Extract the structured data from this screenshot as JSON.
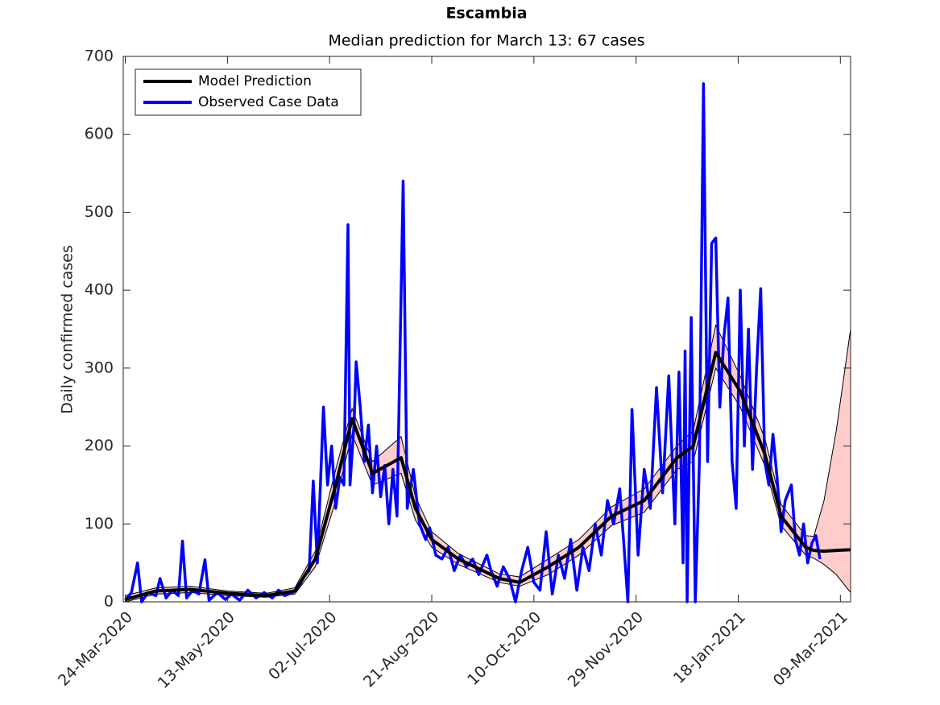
{
  "chart_data": {
    "type": "line",
    "title": "Escambia",
    "subtitle": "Median prediction for March 13: 67 cases",
    "y_label": "Daily confirmed cases",
    "xlim": [
      "2020-03-23",
      "2021-03-14"
    ],
    "xticks": [
      {
        "value": "2020-03-24",
        "label": "24-Mar-2020"
      },
      {
        "value": "2020-05-13",
        "label": "13-May-2020"
      },
      {
        "value": "2020-07-02",
        "label": "02-Jul-2020"
      },
      {
        "value": "2020-08-21",
        "label": "21-Aug-2020"
      },
      {
        "value": "2020-10-10",
        "label": "10-Oct-2020"
      },
      {
        "value": "2020-11-29",
        "label": "29-Nov-2020"
      },
      {
        "value": "2021-01-18",
        "label": "18-Jan-2021"
      },
      {
        "value": "2021-03-09",
        "label": "09-Mar-2021"
      }
    ],
    "ylim": [
      0,
      700
    ],
    "yticks": [
      0,
      100,
      200,
      300,
      400,
      500,
      600,
      700
    ],
    "legend": "upper left",
    "band": {
      "color": "#ffcccc",
      "x": [
        "2020-03-24",
        "2020-04-08",
        "2020-04-25",
        "2020-05-13",
        "2020-06-01",
        "2020-06-15",
        "2020-06-25",
        "2020-07-05",
        "2020-07-13",
        "2020-07-23",
        "2020-08-06",
        "2020-08-13",
        "2020-08-21",
        "2020-09-03",
        "2020-09-23",
        "2020-10-03",
        "2020-10-17",
        "2020-11-01",
        "2020-11-17",
        "2020-12-03",
        "2020-12-19",
        "2020-12-27",
        "2021-01-07",
        "2021-01-19",
        "2021-01-31",
        "2021-02-08",
        "2021-02-20",
        "2021-02-24",
        "2021-03-01",
        "2021-03-07",
        "2021-03-14"
      ],
      "lower": [
        0,
        10,
        12,
        8,
        6,
        10,
        45,
        130,
        215,
        150,
        165,
        105,
        70,
        48,
        25,
        20,
        35,
        60,
        98,
        115,
        170,
        180,
        300,
        250,
        175,
        98,
        60,
        56,
        48,
        35,
        12
      ],
      "upper": [
        8,
        18,
        20,
        14,
        11,
        18,
        65,
        170,
        248,
        180,
        212,
        135,
        90,
        62,
        36,
        32,
        55,
        80,
        122,
        145,
        200,
        220,
        355,
        290,
        210,
        125,
        85,
        84,
        130,
        220,
        350
      ]
    },
    "series": [
      {
        "name": "Model Prediction",
        "color": "#000000",
        "x": [
          "2020-03-24",
          "2020-04-08",
          "2020-04-25",
          "2020-05-13",
          "2020-06-01",
          "2020-06-15",
          "2020-06-25",
          "2020-07-05",
          "2020-07-13",
          "2020-07-23",
          "2020-08-06",
          "2020-08-13",
          "2020-08-21",
          "2020-09-03",
          "2020-09-23",
          "2020-10-03",
          "2020-10-17",
          "2020-11-01",
          "2020-11-17",
          "2020-12-03",
          "2020-12-19",
          "2020-12-27",
          "2021-01-07",
          "2021-01-19",
          "2021-01-31",
          "2021-02-08",
          "2021-02-20",
          "2021-02-24",
          "2021-03-01",
          "2021-03-07",
          "2021-03-14"
        ],
        "values": [
          3,
          14,
          16,
          11,
          8,
          14,
          55,
          150,
          235,
          165,
          185,
          120,
          80,
          55,
          30,
          25,
          45,
          70,
          110,
          130,
          185,
          200,
          320,
          270,
          190,
          110,
          70,
          66,
          65,
          66,
          67
        ]
      },
      {
        "name": "Observed Case Data",
        "color": "#0000ff",
        "x": [
          "2020-03-24",
          "2020-03-27",
          "2020-03-30",
          "2020-04-01",
          "2020-04-04",
          "2020-04-08",
          "2020-04-10",
          "2020-04-13",
          "2020-04-16",
          "2020-04-19",
          "2020-04-21",
          "2020-04-23",
          "2020-04-26",
          "2020-04-29",
          "2020-05-02",
          "2020-05-04",
          "2020-05-08",
          "2020-05-12",
          "2020-05-15",
          "2020-05-19",
          "2020-05-23",
          "2020-05-27",
          "2020-05-31",
          "2020-06-04",
          "2020-06-07",
          "2020-06-10",
          "2020-06-14",
          "2020-06-17",
          "2020-06-20",
          "2020-06-22",
          "2020-06-24",
          "2020-06-26",
          "2020-06-29",
          "2020-07-01",
          "2020-07-03",
          "2020-07-05",
          "2020-07-07",
          "2020-07-09",
          "2020-07-11",
          "2020-07-12",
          "2020-07-14",
          "2020-07-15",
          "2020-07-17",
          "2020-07-19",
          "2020-07-21",
          "2020-07-23",
          "2020-07-25",
          "2020-07-27",
          "2020-07-29",
          "2020-07-31",
          "2020-08-02",
          "2020-08-04",
          "2020-08-07",
          "2020-08-09",
          "2020-08-12",
          "2020-08-15",
          "2020-08-18",
          "2020-08-20",
          "2020-08-23",
          "2020-08-26",
          "2020-08-29",
          "2020-09-01",
          "2020-09-04",
          "2020-09-07",
          "2020-09-10",
          "2020-09-13",
          "2020-09-17",
          "2020-09-19",
          "2020-09-22",
          "2020-09-25",
          "2020-09-28",
          "2020-10-01",
          "2020-10-04",
          "2020-10-07",
          "2020-10-10",
          "2020-10-13",
          "2020-10-16",
          "2020-10-19",
          "2020-10-22",
          "2020-10-25",
          "2020-10-28",
          "2020-10-31",
          "2020-11-03",
          "2020-11-06",
          "2020-11-09",
          "2020-11-12",
          "2020-11-15",
          "2020-11-18",
          "2020-11-21",
          "2020-11-23",
          "2020-11-25",
          "2020-11-27",
          "2020-11-30",
          "2020-12-03",
          "2020-12-06",
          "2020-12-09",
          "2020-12-12",
          "2020-12-15",
          "2020-12-18",
          "2020-12-20",
          "2020-12-22",
          "2020-12-23",
          "2020-12-24",
          "2020-12-26",
          "2020-12-28",
          "2020-12-30",
          "2021-01-01",
          "2021-01-03",
          "2021-01-05",
          "2021-01-07",
          "2021-01-09",
          "2021-01-11",
          "2021-01-13",
          "2021-01-15",
          "2021-01-17",
          "2021-01-19",
          "2021-01-21",
          "2021-01-23",
          "2021-01-25",
          "2021-01-27",
          "2021-01-29",
          "2021-01-31",
          "2021-02-02",
          "2021-02-04",
          "2021-02-06",
          "2021-02-08",
          "2021-02-10",
          "2021-02-13",
          "2021-02-15",
          "2021-02-17",
          "2021-02-19",
          "2021-02-21",
          "2021-02-23",
          "2021-02-25",
          "2021-02-27"
        ],
        "values": [
          2,
          12,
          50,
          0,
          12,
          8,
          30,
          5,
          15,
          8,
          78,
          5,
          15,
          10,
          54,
          2,
          12,
          3,
          10,
          2,
          15,
          5,
          12,
          5,
          15,
          8,
          12,
          20,
          35,
          40,
          155,
          50,
          250,
          150,
          200,
          120,
          160,
          150,
          484,
          150,
          230,
          308,
          250,
          180,
          227,
          140,
          200,
          135,
          175,
          100,
          170,
          110,
          540,
          120,
          170,
          100,
          80,
          95,
          60,
          55,
          70,
          40,
          60,
          45,
          55,
          35,
          60,
          40,
          20,
          45,
          30,
          0,
          40,
          70,
          25,
          15,
          90,
          10,
          60,
          30,
          80,
          15,
          70,
          40,
          100,
          60,
          130,
          100,
          145,
          75,
          0,
          247,
          60,
          170,
          120,
          275,
          140,
          290,
          100,
          295,
          50,
          322,
          0,
          365,
          0,
          180,
          665,
          180,
          460,
          467,
          250,
          340,
          390,
          180,
          120,
          400,
          200,
          350,
          170,
          300,
          402,
          180,
          150,
          215,
          160,
          90,
          130,
          150,
          80,
          60,
          100,
          50,
          75,
          85,
          55
        ]
      }
    ]
  }
}
